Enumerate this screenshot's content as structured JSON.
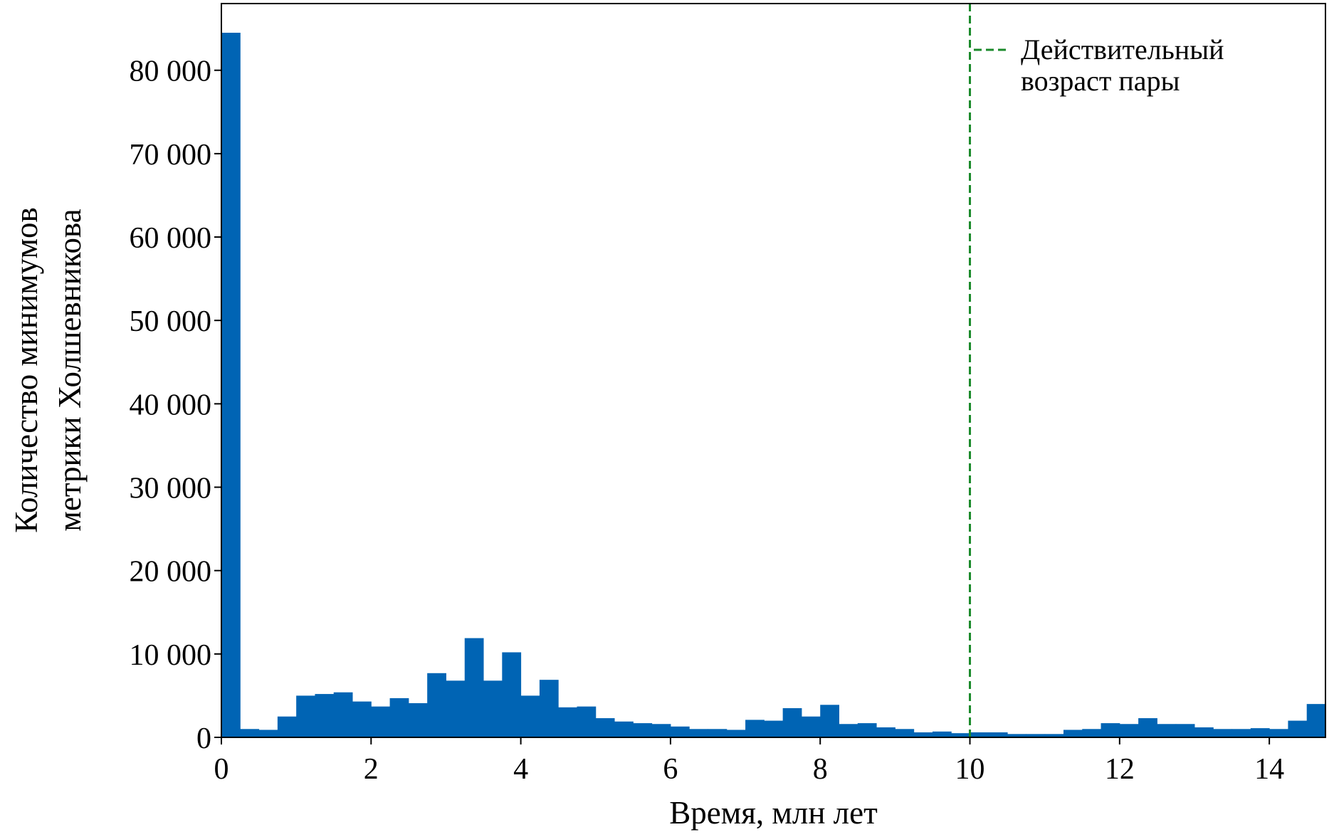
{
  "chart_data": {
    "type": "bar",
    "xlabel": "Время, млн лет",
    "ylabel_lines": [
      "Количество минимумов",
      "метрики Холшевникова"
    ],
    "xlim": [
      0,
      14.75
    ],
    "ylim": [
      0,
      88000
    ],
    "x_ticks": [
      0,
      2,
      4,
      6,
      8,
      10,
      12,
      14
    ],
    "x_tick_labels": [
      "0",
      "2",
      "4",
      "6",
      "8",
      "10",
      "12",
      "14"
    ],
    "y_ticks": [
      0,
      10000,
      20000,
      30000,
      40000,
      50000,
      60000,
      70000,
      80000
    ],
    "y_tick_labels": [
      "0",
      "10 000",
      "20 000",
      "30 000",
      "40 000",
      "50 000",
      "60 000",
      "70 000",
      "80 000"
    ],
    "bin_width": 0.25,
    "bin_start": 0,
    "values": [
      84500,
      1000,
      900,
      2500,
      5000,
      5200,
      5400,
      4300,
      3700,
      4700,
      4100,
      7700,
      6800,
      11900,
      6800,
      10200,
      5000,
      6900,
      3600,
      3700,
      2300,
      1900,
      1700,
      1600,
      1300,
      1000,
      1000,
      900,
      2100,
      2000,
      3500,
      2500,
      3900,
      1600,
      1700,
      1200,
      1000,
      600,
      700,
      500,
      600,
      600,
      400,
      400,
      400,
      900,
      1000,
      1700,
      1600,
      2300,
      1600,
      1600,
      1200,
      1000,
      1000,
      1100,
      1000,
      2000,
      4000
    ],
    "bar_color": "#0064b4",
    "reference_line": {
      "x": 10,
      "color": "#1a8a2a",
      "style": "dashed",
      "label": "Действительный возраст пары",
      "label_lines": [
        "Действительный",
        "возраст пары"
      ]
    },
    "legend_position": "top-right",
    "grid": false
  }
}
